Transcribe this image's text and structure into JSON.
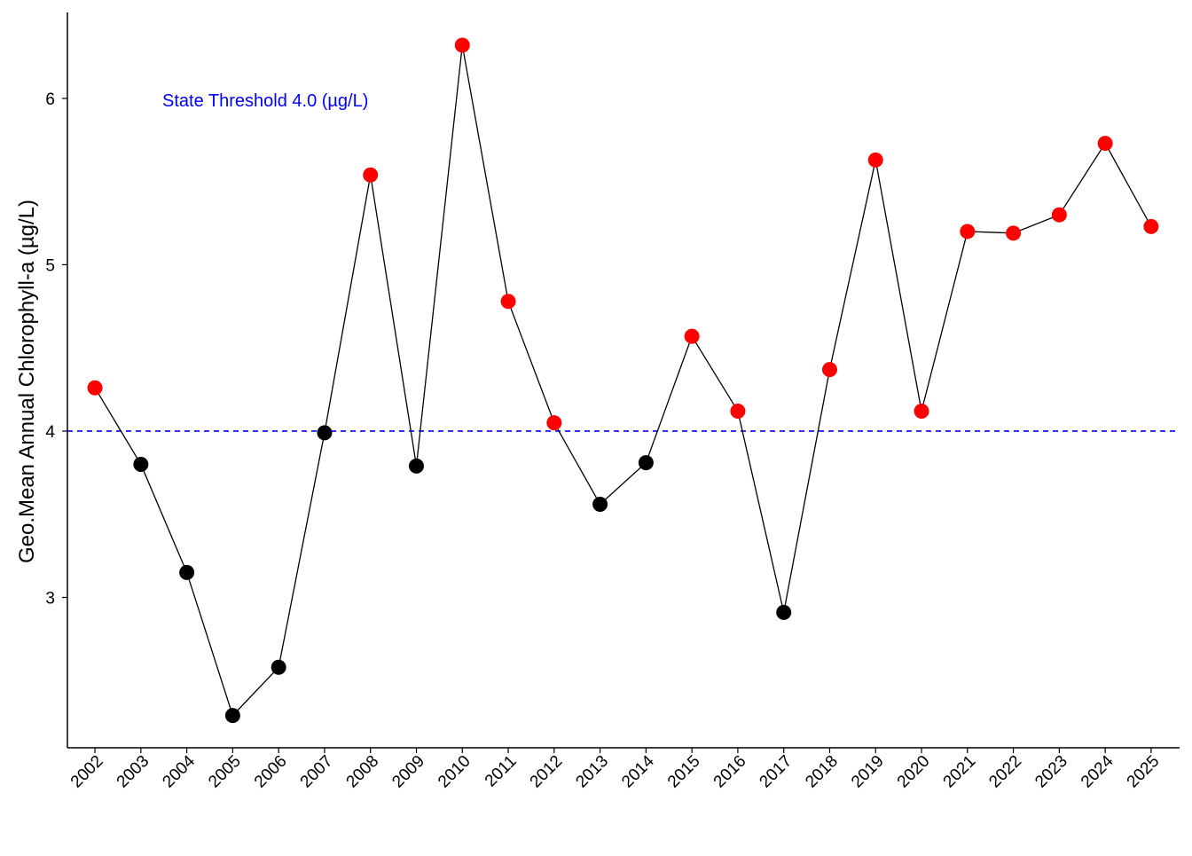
{
  "chart_data": {
    "type": "line",
    "title": "",
    "xlabel": "",
    "ylabel": "Geo.Mean Annual Chlorophyll-a (µg/L)",
    "x": [
      2002,
      2003,
      2004,
      2005,
      2006,
      2007,
      2008,
      2009,
      2010,
      2011,
      2012,
      2013,
      2014,
      2015,
      2016,
      2017,
      2018,
      2019,
      2020,
      2021,
      2022,
      2023,
      2024,
      2025
    ],
    "series": [
      {
        "name": "Geo.Mean Annual Chlorophyll-a",
        "values": [
          4.26,
          3.8,
          3.15,
          2.29,
          2.58,
          3.99,
          5.54,
          3.79,
          6.32,
          4.78,
          4.05,
          3.56,
          3.81,
          4.57,
          4.12,
          2.91,
          4.37,
          5.63,
          4.12,
          5.2,
          5.19,
          5.3,
          5.73,
          5.23
        ]
      }
    ],
    "ylim": [
      2.096,
      6.517
    ],
    "xlim": [
      2001.4,
      2025.62
    ],
    "yticks": [
      3,
      4,
      5,
      6
    ],
    "threshold": {
      "value": 4.0,
      "label": "State Threshold 4.0 (µg/L)",
      "color": "#0000ff"
    },
    "colors": {
      "above": "#ff0000",
      "below": "#000000",
      "line": "#000000"
    },
    "grid": false,
    "legend": "none"
  }
}
